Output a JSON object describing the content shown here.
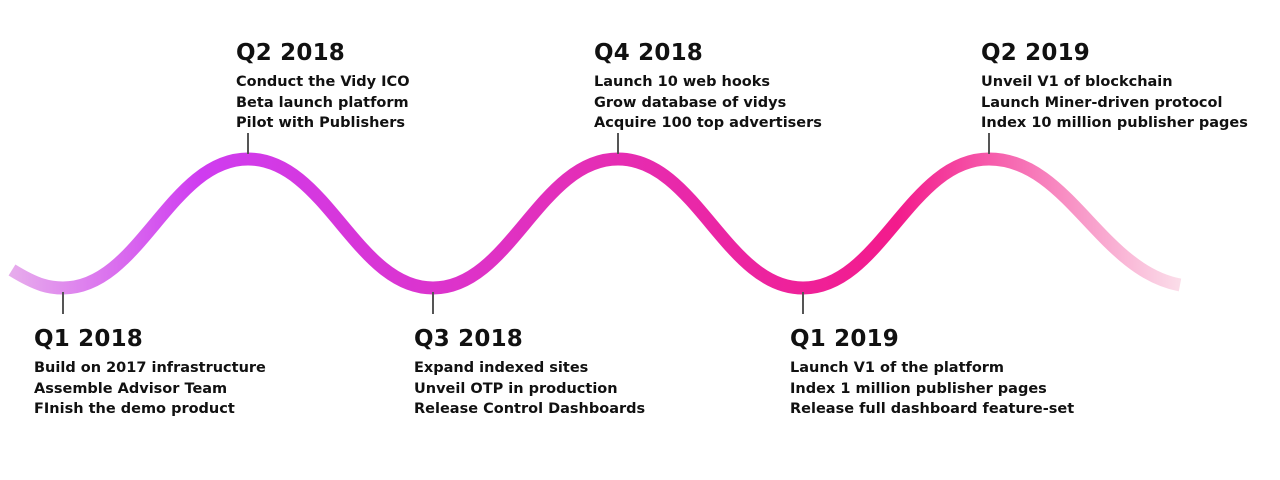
{
  "colors": {
    "wave_start": "#e8b2ec",
    "wave_purple": "#cf3cf0",
    "wave_mid": "#e42eb6",
    "wave_pink": "#f31b8c",
    "wave_end": "#fbdde9",
    "connector": "#555555",
    "text": "#111111"
  },
  "milestones": [
    {
      "id": "q1-2018",
      "title": "Q1 2018",
      "items": [
        "Build on 2017 infrastructure",
        "Assemble Advisor Team",
        "FInish the demo product"
      ]
    },
    {
      "id": "q2-2018",
      "title": "Q2 2018",
      "items": [
        "Conduct the Vidy ICO",
        "Beta launch platform",
        "Pilot with Publishers"
      ]
    },
    {
      "id": "q3-2018",
      "title": "Q3 2018",
      "items": [
        "Expand indexed sites",
        "Unveil OTP in production",
        "Release Control Dashboards"
      ]
    },
    {
      "id": "q4-2018",
      "title": "Q4 2018",
      "items": [
        "Launch 10 web hooks",
        "Grow database of vidys",
        "Acquire 100 top advertisers"
      ]
    },
    {
      "id": "q1-2019",
      "title": "Q1 2019",
      "items": [
        "Launch V1 of the platform",
        "Index 1 million publisher pages",
        "Release full dashboard feature-set"
      ]
    },
    {
      "id": "q2-2019",
      "title": "Q2 2019",
      "items": [
        "Unveil V1 of blockchain",
        "Launch Miner-driven protocol",
        "Index 10 million publisher pages"
      ]
    }
  ]
}
